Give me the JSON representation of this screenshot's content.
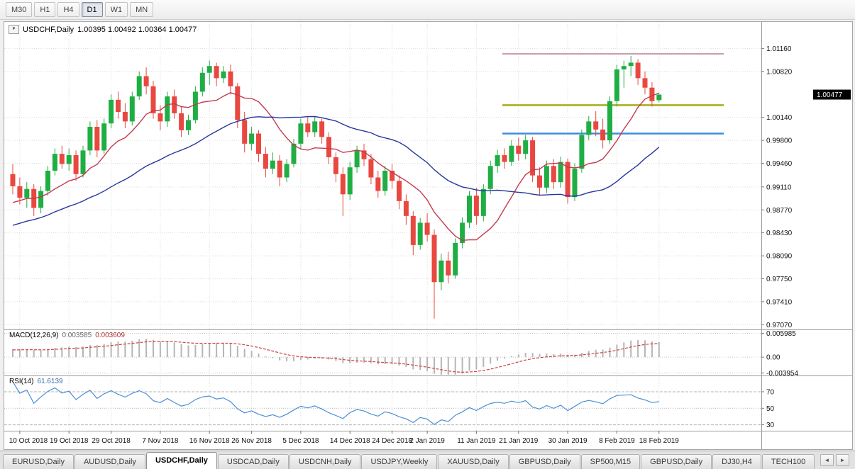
{
  "toolbar": {
    "timeframes": [
      {
        "label": "M30",
        "active": false
      },
      {
        "label": "H1",
        "active": false
      },
      {
        "label": "H4",
        "active": false
      },
      {
        "label": "D1",
        "active": true
      },
      {
        "label": "W1",
        "active": false
      },
      {
        "label": "MN",
        "active": false
      }
    ]
  },
  "chart": {
    "title_symbol": "USDCHF,Daily",
    "title_ohlc": "1.00395 1.00492 1.00364 1.00477",
    "price_badge": "1.00477",
    "dropdown_glyph": "▼",
    "axis_labels": [
      "1.01160",
      "1.00820",
      "1.00140",
      "0.99800",
      "0.99460",
      "0.99110",
      "0.98770",
      "0.98430",
      "0.98090",
      "0.97750",
      "0.97410",
      "0.97070"
    ]
  },
  "indicators": {
    "macd": {
      "name": "MACD(12,26,9)",
      "value_main": "0.003585",
      "value_signal": "0.003609",
      "axis": [
        {
          "v": 0.005985,
          "label": "0.005985"
        },
        {
          "v": 0,
          "label": "0.00"
        },
        {
          "v": -0.003954,
          "label": "-0.003954"
        }
      ],
      "ylim": [
        -0.0046,
        0.0066
      ]
    },
    "rsi": {
      "name": "RSI(14)",
      "value": "61.6139",
      "levels": [
        70,
        50,
        30
      ],
      "ylim": [
        22.8,
        88
      ]
    }
  },
  "tabs": {
    "items": [
      {
        "label": "EURUSD,Daily",
        "active": false
      },
      {
        "label": "AUDUSD,Daily",
        "active": false
      },
      {
        "label": "USDCHF,Daily",
        "active": true
      },
      {
        "label": "USDCAD,Daily",
        "active": false
      },
      {
        "label": "USDCNH,Daily",
        "active": false
      },
      {
        "label": "USDJPY,Weekly",
        "active": false
      },
      {
        "label": "XAUUSD,Daily",
        "active": false
      },
      {
        "label": "GBPUSD,Daily",
        "active": false
      },
      {
        "label": "SP500,M15",
        "active": false
      },
      {
        "label": "GBPUSD,Daily",
        "active": false
      },
      {
        "label": "DJ30,H4",
        "active": false
      },
      {
        "label": "TECH100",
        "active": false
      }
    ],
    "scroll_left": "◄",
    "scroll_right": "►"
  },
  "chart_data": {
    "type": "candlestick",
    "symbol": "USDCHF",
    "timeframe": "Daily",
    "current_bar": {
      "open": 1.00395,
      "high": 1.00492,
      "low": 1.00364,
      "close": 1.00477
    },
    "ylim": [
      0.97,
      1.015
    ],
    "candles": [
      [
        0.993,
        0.9945,
        0.99,
        0.9912
      ],
      [
        0.9912,
        0.9925,
        0.9885,
        0.9895
      ],
      [
        0.9895,
        0.9918,
        0.988,
        0.9908
      ],
      [
        0.9908,
        0.9915,
        0.9868,
        0.988
      ],
      [
        0.988,
        0.9912,
        0.9872,
        0.9905
      ],
      [
        0.9905,
        0.9942,
        0.9898,
        0.9935
      ],
      [
        0.9935,
        0.9968,
        0.9928,
        0.996
      ],
      [
        0.996,
        0.9972,
        0.9938,
        0.9945
      ],
      [
        0.9945,
        0.9968,
        0.9935,
        0.9958
      ],
      [
        0.9958,
        0.9965,
        0.992,
        0.993
      ],
      [
        0.993,
        0.9972,
        0.9925,
        0.9965
      ],
      [
        0.9965,
        1.0008,
        0.9958,
        1.0
      ],
      [
        1.0,
        1.001,
        0.9955,
        0.9965
      ],
      [
        0.9965,
        1.0012,
        0.996,
        1.0005
      ],
      [
        1.0005,
        1.0048,
        0.9998,
        1.004
      ],
      [
        1.004,
        1.0052,
        1.0012,
        1.0022
      ],
      [
        1.0022,
        1.0035,
        0.9998,
        1.0008
      ],
      [
        1.0008,
        1.0052,
        1.0002,
        1.0045
      ],
      [
        1.0045,
        1.0082,
        1.004,
        1.0075
      ],
      [
        1.0075,
        1.0088,
        1.0048,
        1.006
      ],
      [
        1.006,
        1.0068,
        1.0012,
        1.002
      ],
      [
        1.002,
        1.0032,
        0.9995,
        1.0008
      ],
      [
        1.0008,
        1.0052,
        1.0,
        1.0045
      ],
      [
        1.0045,
        1.0055,
        1.0012,
        1.002
      ],
      [
        1.002,
        1.003,
        0.9985,
        0.9995
      ],
      [
        0.9995,
        1.0018,
        0.9988,
        1.001
      ],
      [
        1.001,
        1.006,
        1.0005,
        1.0052
      ],
      [
        1.0052,
        1.0088,
        1.0045,
        1.008
      ],
      [
        1.008,
        1.0098,
        1.0062,
        1.009
      ],
      [
        1.009,
        1.0095,
        1.006,
        1.0072
      ],
      [
        1.0072,
        1.009,
        1.0065,
        1.0082
      ],
      [
        1.0082,
        1.0092,
        1.0048,
        1.006
      ],
      [
        1.006,
        1.0065,
        0.9998,
        1.001
      ],
      [
        1.001,
        1.0022,
        0.9962,
        0.9975
      ],
      [
        0.9975,
        1.0,
        0.9965,
        0.999
      ],
      [
        0.999,
        0.9995,
        0.9948,
        0.996
      ],
      [
        0.996,
        0.997,
        0.9925,
        0.9938
      ],
      [
        0.9938,
        0.9962,
        0.993,
        0.995
      ],
      [
        0.995,
        0.9958,
        0.9912,
        0.9925
      ],
      [
        0.9925,
        0.9952,
        0.9918,
        0.9945
      ],
      [
        0.9945,
        0.9982,
        0.994,
        0.9975
      ],
      [
        0.9975,
        1.0012,
        0.9968,
        1.0005
      ],
      [
        1.0005,
        1.0015,
        0.9985,
        0.9992
      ],
      [
        0.9992,
        1.0015,
        0.9985,
        1.0008
      ],
      [
        1.0008,
        1.0012,
        0.9975,
        0.9985
      ],
      [
        0.9985,
        0.9992,
        0.9945,
        0.9955
      ],
      [
        0.9955,
        0.9962,
        0.9918,
        0.993
      ],
      [
        0.993,
        0.994,
        0.9868,
        0.99
      ],
      [
        0.99,
        0.9948,
        0.9892,
        0.994
      ],
      [
        0.994,
        0.9972,
        0.9932,
        0.9965
      ],
      [
        0.9965,
        0.9975,
        0.9942,
        0.9952
      ],
      [
        0.9952,
        0.996,
        0.9915,
        0.9925
      ],
      [
        0.9925,
        0.9935,
        0.9895,
        0.9905
      ],
      [
        0.9905,
        0.9942,
        0.9898,
        0.9935
      ],
      [
        0.9935,
        0.9945,
        0.9908,
        0.992
      ],
      [
        0.992,
        0.9928,
        0.9878,
        0.989
      ],
      [
        0.989,
        0.99,
        0.9855,
        0.9868
      ],
      [
        0.9868,
        0.9875,
        0.981,
        0.9825
      ],
      [
        0.9825,
        0.9865,
        0.9818,
        0.9858
      ],
      [
        0.9858,
        0.9872,
        0.983,
        0.984
      ],
      [
        0.984,
        0.9848,
        0.9716,
        0.977
      ],
      [
        0.977,
        0.9812,
        0.9758,
        0.9802
      ],
      [
        0.9802,
        0.9815,
        0.9768,
        0.978
      ],
      [
        0.978,
        0.9835,
        0.9775,
        0.9828
      ],
      [
        0.9828,
        0.9866,
        0.982,
        0.9858
      ],
      [
        0.9858,
        0.9905,
        0.985,
        0.9898
      ],
      [
        0.9898,
        0.991,
        0.9855,
        0.9868
      ],
      [
        0.9868,
        0.9915,
        0.986,
        0.9908
      ],
      [
        0.9908,
        0.995,
        0.99,
        0.9942
      ],
      [
        0.9942,
        0.9966,
        0.9932,
        0.9958
      ],
      [
        0.9958,
        0.9968,
        0.9938,
        0.9948
      ],
      [
        0.9948,
        0.998,
        0.9942,
        0.9972
      ],
      [
        0.9972,
        0.9984,
        0.995,
        0.996
      ],
      [
        0.996,
        0.9988,
        0.9952,
        0.998
      ],
      [
        0.998,
        0.9985,
        0.9918,
        0.9928
      ],
      [
        0.9928,
        0.994,
        0.9898,
        0.991
      ],
      [
        0.991,
        0.995,
        0.9902,
        0.9942
      ],
      [
        0.9942,
        0.9952,
        0.9908,
        0.9918
      ],
      [
        0.9918,
        0.9956,
        0.991,
        0.9948
      ],
      [
        0.9948,
        0.9953,
        0.9886,
        0.9896
      ],
      [
        0.9896,
        0.9946,
        0.989,
        0.9938
      ],
      [
        0.9938,
        0.9996,
        0.9932,
        0.9988
      ],
      [
        0.9988,
        1.0016,
        0.998,
        1.0008
      ],
      [
        1.0008,
        1.0023,
        0.9986,
        0.9996
      ],
      [
        0.9996,
        1.0012,
        0.9968,
        0.998
      ],
      [
        0.998,
        1.0045,
        0.9974,
        1.0038
      ],
      [
        1.0038,
        1.0092,
        1.003,
        1.0085
      ],
      [
        1.0085,
        1.0098,
        1.0058,
        1.009
      ],
      [
        1.009,
        1.0105,
        1.0075,
        1.0095
      ],
      [
        1.0095,
        1.01,
        1.0062,
        1.0072
      ],
      [
        1.0072,
        1.0082,
        1.0048,
        1.0058
      ],
      [
        1.0058,
        1.0066,
        1.003,
        1.0038
      ],
      [
        1.00395,
        1.00492,
        1.00364,
        1.00477
      ]
    ],
    "date_labels": [
      {
        "label": "10 Oct 2018",
        "i": 1
      },
      {
        "label": "19 Oct 2018",
        "i": 8
      },
      {
        "label": "29 Oct 2018",
        "i": 14
      },
      {
        "label": "7 Nov 2018",
        "i": 21
      },
      {
        "label": "16 Nov 2018",
        "i": 28
      },
      {
        "label": "26 Nov 2018",
        "i": 34
      },
      {
        "label": "5 Dec 2018",
        "i": 41
      },
      {
        "label": "14 Dec 2018",
        "i": 48
      },
      {
        "label": "24 Dec 2018",
        "i": 54
      },
      {
        "label": "2 Jan 2019",
        "i": 59
      },
      {
        "label": "11 Jan 2019",
        "i": 66
      },
      {
        "label": "21 Jan 2019",
        "i": 72
      },
      {
        "label": "30 Jan 2019",
        "i": 79
      },
      {
        "label": "8 Feb 2019",
        "i": 86
      },
      {
        "label": "18 Feb 2019",
        "i": 92
      }
    ],
    "hlines": [
      {
        "price": 1.0108,
        "color": "#9a3b50",
        "width": 1
      },
      {
        "price": 1.0032,
        "color": "#b3b93a",
        "width": 3
      },
      {
        "price": 0.999,
        "color": "#3f8ede",
        "width": 2.5
      }
    ],
    "moving_averages": [
      {
        "period": 10,
        "color": "#c43a50"
      },
      {
        "period": 30,
        "color": "#27379b"
      }
    ],
    "ma_seed": [
      0.98,
      0.9806,
      0.9812,
      0.9808,
      0.9816,
      0.9822,
      0.9818,
      0.9826,
      0.9832,
      0.9828,
      0.9836,
      0.9842,
      0.9838,
      0.9846,
      0.9852,
      0.9848,
      0.9856,
      0.9862,
      0.9858,
      0.9866,
      0.9872,
      0.9868,
      0.9876,
      0.9882,
      0.9878,
      0.9886,
      0.9892,
      0.9888,
      0.9896,
      0.9902
    ],
    "colors": {
      "bull": "#1fae43",
      "bear": "#e8483f",
      "grid": "#dcdcdc",
      "separator": "#9a9a9a",
      "macd_bar": "#b6b6b6",
      "macd_signal": "#d04040",
      "rsi": "#4b8fd5",
      "badge_bg": "#000000",
      "badge_text": "#ffffff",
      "axis_text": "#111111"
    }
  }
}
